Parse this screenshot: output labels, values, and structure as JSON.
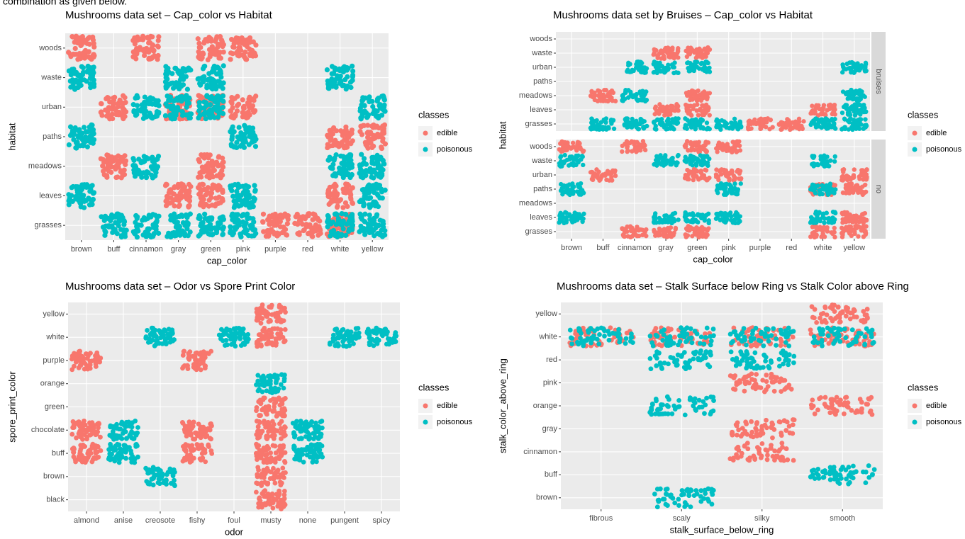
{
  "header_text": "combination as given below.",
  "chart_data": [
    {
      "type": "jitter",
      "title": "Mushrooms data set – Cap_color vs Habitat",
      "x_label": "cap_color",
      "y_label": "habitat",
      "x_categories": [
        "brown",
        "buff",
        "cinnamon",
        "gray",
        "green",
        "pink",
        "purple",
        "red",
        "white",
        "yellow"
      ],
      "y_categories": [
        "grasses",
        "leaves",
        "meadows",
        "paths",
        "urban",
        "waste",
        "woods"
      ],
      "legend_title": "classes",
      "series": [
        {
          "name": "edible",
          "color": "#f8766d",
          "points": [
            [
              "brown",
              "woods"
            ],
            [
              "cinnamon",
              "woods"
            ],
            [
              "green",
              "woods"
            ],
            [
              "pink",
              "woods"
            ],
            [
              "buff",
              "urban"
            ],
            [
              "pink",
              "urban"
            ],
            [
              "gray",
              "urban"
            ],
            [
              "green",
              "urban"
            ],
            [
              "buff",
              "meadows"
            ],
            [
              "green",
              "meadows"
            ],
            [
              "gray",
              "leaves"
            ],
            [
              "green",
              "leaves"
            ],
            [
              "white",
              "leaves"
            ],
            [
              "white",
              "paths"
            ],
            [
              "yellow",
              "paths"
            ],
            [
              "purple",
              "grasses"
            ],
            [
              "red",
              "grasses"
            ],
            [
              "white",
              "grasses"
            ]
          ]
        },
        {
          "name": "poisonous",
          "color": "#00bfc4",
          "points": [
            [
              "brown",
              "waste"
            ],
            [
              "gray",
              "waste"
            ],
            [
              "green",
              "waste"
            ],
            [
              "white",
              "waste"
            ],
            [
              "cinnamon",
              "urban"
            ],
            [
              "gray",
              "urban"
            ],
            [
              "green",
              "urban"
            ],
            [
              "yellow",
              "urban"
            ],
            [
              "brown",
              "paths"
            ],
            [
              "pink",
              "paths"
            ],
            [
              "cinnamon",
              "meadows"
            ],
            [
              "white",
              "meadows"
            ],
            [
              "yellow",
              "meadows"
            ],
            [
              "brown",
              "leaves"
            ],
            [
              "pink",
              "leaves"
            ],
            [
              "yellow",
              "leaves"
            ],
            [
              "buff",
              "grasses"
            ],
            [
              "cinnamon",
              "grasses"
            ],
            [
              "gray",
              "grasses"
            ],
            [
              "green",
              "grasses"
            ],
            [
              "pink",
              "grasses"
            ],
            [
              "white",
              "grasses"
            ],
            [
              "yellow",
              "grasses"
            ]
          ]
        }
      ]
    },
    {
      "type": "jitter",
      "title": "Mushrooms data set by Bruises – Cap_color vs Habitat",
      "x_label": "cap_color",
      "y_label": "habitat",
      "x_categories": [
        "brown",
        "buff",
        "cinnamon",
        "gray",
        "green",
        "pink",
        "purple",
        "red",
        "white",
        "yellow"
      ],
      "y_categories": [
        "grasses",
        "leaves",
        "meadows",
        "paths",
        "urban",
        "waste",
        "woods"
      ],
      "facets": [
        "bruises",
        "no"
      ],
      "legend_title": "classes",
      "series": [
        {
          "name": "edible",
          "color": "#f8766d",
          "points": [
            [
              "gray",
              "waste",
              "bruises"
            ],
            [
              "green",
              "waste",
              "bruises"
            ],
            [
              "buff",
              "meadows",
              "bruises"
            ],
            [
              "green",
              "meadows",
              "bruises"
            ],
            [
              "gray",
              "leaves",
              "bruises"
            ],
            [
              "green",
              "leaves",
              "bruises"
            ],
            [
              "white",
              "leaves",
              "bruises"
            ],
            [
              "purple",
              "grasses",
              "bruises"
            ],
            [
              "red",
              "grasses",
              "bruises"
            ],
            [
              "brown",
              "woods",
              "no"
            ],
            [
              "cinnamon",
              "woods",
              "no"
            ],
            [
              "green",
              "woods",
              "no"
            ],
            [
              "pink",
              "woods",
              "no"
            ],
            [
              "buff",
              "urban",
              "no"
            ],
            [
              "green",
              "urban",
              "no"
            ],
            [
              "pink",
              "urban",
              "no"
            ],
            [
              "yellow",
              "urban",
              "no"
            ],
            [
              "white",
              "paths",
              "no"
            ],
            [
              "yellow",
              "paths",
              "no"
            ],
            [
              "yellow",
              "leaves",
              "no"
            ],
            [
              "cinnamon",
              "grasses",
              "no"
            ],
            [
              "gray",
              "grasses",
              "no"
            ],
            [
              "green",
              "grasses",
              "no"
            ],
            [
              "white",
              "grasses",
              "no"
            ],
            [
              "yellow",
              "grasses",
              "no"
            ]
          ]
        },
        {
          "name": "poisonous",
          "color": "#00bfc4",
          "points": [
            [
              "cinnamon",
              "urban",
              "bruises"
            ],
            [
              "gray",
              "urban",
              "bruises"
            ],
            [
              "green",
              "urban",
              "bruises"
            ],
            [
              "yellow",
              "urban",
              "bruises"
            ],
            [
              "cinnamon",
              "meadows",
              "bruises"
            ],
            [
              "yellow",
              "meadows",
              "bruises"
            ],
            [
              "yellow",
              "leaves",
              "bruises"
            ],
            [
              "buff",
              "grasses",
              "bruises"
            ],
            [
              "cinnamon",
              "grasses",
              "bruises"
            ],
            [
              "gray",
              "grasses",
              "bruises"
            ],
            [
              "green",
              "grasses",
              "bruises"
            ],
            [
              "pink",
              "grasses",
              "bruises"
            ],
            [
              "white",
              "grasses",
              "bruises"
            ],
            [
              "yellow",
              "grasses",
              "bruises"
            ],
            [
              "brown",
              "waste",
              "no"
            ],
            [
              "gray",
              "waste",
              "no"
            ],
            [
              "green",
              "waste",
              "no"
            ],
            [
              "white",
              "waste",
              "no"
            ],
            [
              "brown",
              "paths",
              "no"
            ],
            [
              "pink",
              "paths",
              "no"
            ],
            [
              "white",
              "paths",
              "no"
            ],
            [
              "brown",
              "leaves",
              "no"
            ],
            [
              "gray",
              "leaves",
              "no"
            ],
            [
              "green",
              "leaves",
              "no"
            ],
            [
              "pink",
              "leaves",
              "no"
            ],
            [
              "white",
              "leaves",
              "no"
            ]
          ]
        }
      ]
    },
    {
      "type": "jitter",
      "title": "Mushrooms data set – Odor vs Spore Print Color",
      "x_label": "odor",
      "y_label": "spore_print_color",
      "x_categories": [
        "almond",
        "anise",
        "creosote",
        "fishy",
        "foul",
        "musty",
        "none",
        "pungent",
        "spicy"
      ],
      "y_categories": [
        "black",
        "brown",
        "buff",
        "chocolate",
        "green",
        "orange",
        "purple",
        "white",
        "yellow"
      ],
      "legend_title": "classes",
      "series": [
        {
          "name": "edible",
          "color": "#f8766d",
          "points": [
            [
              "almond",
              "purple"
            ],
            [
              "almond",
              "chocolate"
            ],
            [
              "almond",
              "buff"
            ],
            [
              "fishy",
              "purple"
            ],
            [
              "fishy",
              "chocolate"
            ],
            [
              "fishy",
              "buff"
            ],
            [
              "musty",
              "yellow"
            ],
            [
              "musty",
              "white"
            ],
            [
              "musty",
              "green"
            ],
            [
              "musty",
              "chocolate"
            ],
            [
              "musty",
              "buff"
            ],
            [
              "musty",
              "brown"
            ],
            [
              "musty",
              "black"
            ]
          ]
        },
        {
          "name": "poisonous",
          "color": "#00bfc4",
          "points": [
            [
              "anise",
              "chocolate"
            ],
            [
              "anise",
              "buff"
            ],
            [
              "creosote",
              "white"
            ],
            [
              "creosote",
              "brown"
            ],
            [
              "foul",
              "white"
            ],
            [
              "musty",
              "orange"
            ],
            [
              "none",
              "chocolate"
            ],
            [
              "none",
              "buff"
            ],
            [
              "pungent",
              "white"
            ],
            [
              "spicy",
              "white"
            ]
          ]
        }
      ]
    },
    {
      "type": "jitter",
      "title": "Mushrooms data set – Stalk Surface below Ring vs Stalk Color above Ring",
      "x_label": "stalk_surface_below_ring",
      "y_label": "stalk_color_above_ring",
      "x_categories": [
        "fibrous",
        "scaly",
        "silky",
        "smooth"
      ],
      "y_categories": [
        "brown",
        "buff",
        "cinnamon",
        "gray",
        "orange",
        "pink",
        "red",
        "white",
        "yellow"
      ],
      "legend_title": "classes",
      "series": [
        {
          "name": "edible",
          "color": "#f8766d",
          "points": [
            [
              "fibrous",
              "white"
            ],
            [
              "scaly",
              "white"
            ],
            [
              "silky",
              "white"
            ],
            [
              "smooth",
              "white"
            ],
            [
              "silky",
              "pink"
            ],
            [
              "silky",
              "gray"
            ],
            [
              "silky",
              "cinnamon"
            ],
            [
              "smooth",
              "orange"
            ],
            [
              "smooth",
              "yellow"
            ]
          ]
        },
        {
          "name": "poisonous",
          "color": "#00bfc4",
          "points": [
            [
              "fibrous",
              "white"
            ],
            [
              "scaly",
              "white"
            ],
            [
              "silky",
              "white"
            ],
            [
              "smooth",
              "white"
            ],
            [
              "scaly",
              "red"
            ],
            [
              "silky",
              "red"
            ],
            [
              "scaly",
              "orange"
            ],
            [
              "scaly",
              "brown"
            ],
            [
              "smooth",
              "buff"
            ]
          ]
        }
      ]
    }
  ]
}
